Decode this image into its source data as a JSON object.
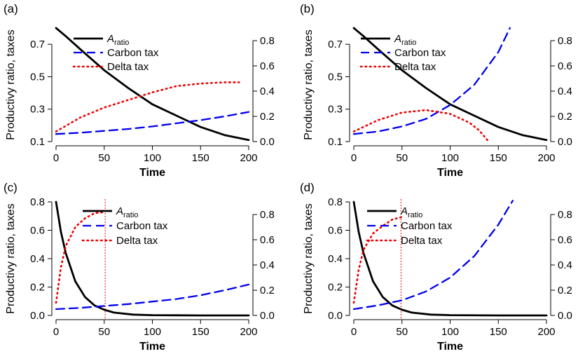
{
  "figure": {
    "panel_labels": [
      "(a)",
      "(b)",
      "(c)",
      "(d)"
    ],
    "legend": {
      "a_ratio_main": "A",
      "a_ratio_sub": "ratio",
      "carbon_tax": "Carbon tax",
      "delta_tax": "Delta tax"
    }
  },
  "colors": {
    "a_ratio": "#000000",
    "carbon_tax": "#0000ee",
    "delta_tax": "#ee0000",
    "vline": "#ee0000"
  },
  "chart_data": [
    {
      "type": "line",
      "panel": "(a)",
      "xlabel": "Time",
      "ylabel": "Productivy ratio, taxes",
      "xlim": [
        0,
        200
      ],
      "xticks": [
        0,
        50,
        100,
        150,
        200
      ],
      "ylim_left": [
        0.1,
        0.8
      ],
      "yticks_left": [
        0.1,
        0.3,
        0.5,
        0.7
      ],
      "ylim_right": [
        0,
        0.9
      ],
      "yticks_right": [
        0.0,
        0.2,
        0.4,
        0.6,
        0.8
      ],
      "legend_position": "top-center",
      "series": [
        {
          "name": "A_ratio",
          "axis": "left",
          "style": "solid",
          "x": [
            0,
            10,
            25,
            50,
            75,
            100,
            125,
            150,
            175,
            200
          ],
          "y": [
            0.8,
            0.75,
            0.67,
            0.54,
            0.43,
            0.33,
            0.26,
            0.19,
            0.14,
            0.11
          ]
        },
        {
          "name": "Carbon tax",
          "axis": "right",
          "style": "dashed",
          "x": [
            0,
            25,
            50,
            75,
            100,
            125,
            150,
            175,
            200
          ],
          "y": [
            0.06,
            0.07,
            0.085,
            0.1,
            0.12,
            0.145,
            0.17,
            0.2,
            0.235
          ]
        },
        {
          "name": "Delta tax",
          "axis": "right",
          "style": "dotted",
          "x": [
            0,
            25,
            50,
            75,
            100,
            125,
            150,
            175,
            190
          ],
          "y": [
            0.08,
            0.19,
            0.27,
            0.33,
            0.39,
            0.44,
            0.46,
            0.47,
            0.47
          ]
        }
      ]
    },
    {
      "type": "line",
      "panel": "(b)",
      "xlabel": "Time",
      "ylabel": "Productivy ratio, taxes",
      "xlim": [
        0,
        200
      ],
      "xticks": [
        0,
        50,
        100,
        150,
        200
      ],
      "ylim_left": [
        0.1,
        0.8
      ],
      "yticks_left": [
        0.1,
        0.3,
        0.5,
        0.7
      ],
      "ylim_right": [
        0,
        0.9
      ],
      "yticks_right": [
        0.0,
        0.2,
        0.4,
        0.6,
        0.8
      ],
      "legend_position": "top-center",
      "series": [
        {
          "name": "A_ratio",
          "axis": "left",
          "style": "solid",
          "x": [
            0,
            10,
            25,
            50,
            75,
            100,
            125,
            150,
            175,
            200
          ],
          "y": [
            0.8,
            0.75,
            0.67,
            0.54,
            0.43,
            0.33,
            0.26,
            0.19,
            0.14,
            0.11
          ]
        },
        {
          "name": "Carbon tax",
          "axis": "right",
          "style": "dashed",
          "x": [
            0,
            25,
            50,
            75,
            100,
            125,
            150,
            162
          ],
          "y": [
            0.06,
            0.08,
            0.12,
            0.18,
            0.29,
            0.45,
            0.71,
            0.9
          ]
        },
        {
          "name": "Delta tax",
          "axis": "right",
          "style": "dotted",
          "x": [
            0,
            25,
            50,
            75,
            100,
            120,
            130,
            140
          ],
          "y": [
            0.08,
            0.17,
            0.23,
            0.25,
            0.22,
            0.15,
            0.09,
            0.0
          ]
        }
      ]
    },
    {
      "type": "line",
      "panel": "(c)",
      "xlabel": "Time",
      "ylabel": "Productivy ratio, taxes",
      "xlim": [
        0,
        200
      ],
      "xticks": [
        0,
        50,
        100,
        150,
        200
      ],
      "ylim_left": [
        0,
        0.8
      ],
      "yticks_left": [
        0.0,
        0.2,
        0.4,
        0.6,
        0.8
      ],
      "ylim_right": [
        0,
        0.9
      ],
      "yticks_right": [
        0.0,
        0.2,
        0.4,
        0.6,
        0.8
      ],
      "vline_x": 51,
      "legend_position": "top-right",
      "series": [
        {
          "name": "A_ratio",
          "axis": "left",
          "style": "solid",
          "x": [
            0,
            5,
            10,
            20,
            30,
            40,
            50,
            60,
            80,
            100,
            150,
            200
          ],
          "y": [
            0.8,
            0.59,
            0.44,
            0.24,
            0.13,
            0.07,
            0.04,
            0.02,
            0.006,
            0.002,
            0.0,
            0.0
          ]
        },
        {
          "name": "Carbon tax",
          "axis": "right",
          "style": "dashed",
          "x": [
            0,
            25,
            50,
            75,
            100,
            125,
            150,
            175,
            200
          ],
          "y": [
            0.05,
            0.06,
            0.075,
            0.09,
            0.11,
            0.13,
            0.16,
            0.2,
            0.245
          ]
        },
        {
          "name": "Delta tax",
          "axis": "right",
          "style": "dotted",
          "x": [
            0,
            5,
            10,
            20,
            30,
            40,
            50
          ],
          "y": [
            0.1,
            0.38,
            0.55,
            0.7,
            0.77,
            0.81,
            0.82
          ]
        }
      ]
    },
    {
      "type": "line",
      "panel": "(d)",
      "xlabel": "Time",
      "ylabel": "Productivy ratio, taxes",
      "xlim": [
        0,
        200
      ],
      "xticks": [
        0,
        50,
        100,
        150,
        200
      ],
      "ylim_left": [
        0,
        0.8
      ],
      "yticks_left": [
        0.0,
        0.2,
        0.4,
        0.6,
        0.8
      ],
      "ylim_right": [
        0,
        0.9
      ],
      "yticks_right": [
        0.0,
        0.2,
        0.4,
        0.6,
        0.8
      ],
      "vline_x": 49,
      "legend_position": "top-right",
      "series": [
        {
          "name": "A_ratio",
          "axis": "left",
          "style": "solid",
          "x": [
            0,
            5,
            10,
            20,
            30,
            40,
            50,
            60,
            80,
            100,
            150,
            200
          ],
          "y": [
            0.8,
            0.59,
            0.44,
            0.24,
            0.13,
            0.07,
            0.04,
            0.02,
            0.006,
            0.002,
            0.0,
            0.0
          ]
        },
        {
          "name": "Carbon tax",
          "axis": "right",
          "style": "dashed",
          "x": [
            0,
            25,
            50,
            75,
            100,
            125,
            150,
            165
          ],
          "y": [
            0.05,
            0.08,
            0.12,
            0.19,
            0.3,
            0.47,
            0.72,
            0.91
          ]
        },
        {
          "name": "Delta tax",
          "axis": "right",
          "style": "dotted",
          "x": [
            0,
            5,
            10,
            20,
            30,
            40,
            50
          ],
          "y": [
            0.1,
            0.36,
            0.52,
            0.65,
            0.71,
            0.76,
            0.78
          ]
        }
      ]
    }
  ]
}
